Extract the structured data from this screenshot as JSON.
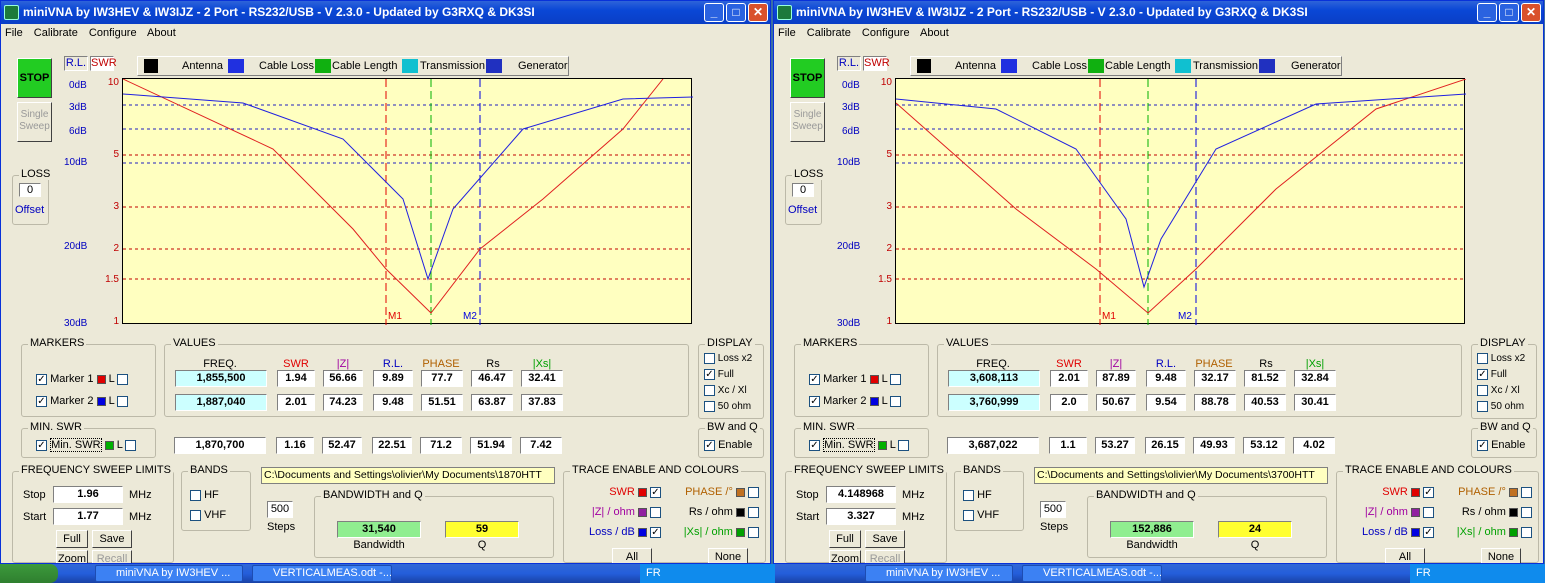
{
  "windows": [
    {
      "title": "miniVNA by IW3HEV & IW3IJZ - 2 Port - RS232/USB - V 2.3.0 - Updated by G3RXQ & DK3SI",
      "menu": [
        "File",
        "Calibrate",
        "Configure",
        "About"
      ],
      "stop_label": "STOP",
      "single_sweep_label": "Single Sweep",
      "rl_tab": "R.L.",
      "swr_tab": "SWR",
      "mode_buttons": [
        "Antenna",
        "Cable Loss",
        "Cable Length",
        "Transmission",
        "Generator"
      ],
      "rl_ticks": [
        "0dB",
        "3dB",
        "6dB",
        "10dB",
        "20dB",
        "30dB"
      ],
      "swr_ticks": [
        "10",
        "5",
        "3",
        "2",
        "1.5",
        "1"
      ],
      "marker_m1": "M1",
      "marker_m2": "M2",
      "loss": {
        "label": "LOSS",
        "value": "0",
        "offset": "Offset"
      },
      "markers_group": "MARKERS",
      "marker1_label": "Marker 1",
      "marker2_label": "Marker 2",
      "l_label": "L",
      "minswr_group": "MIN. SWR",
      "minswr_label": "Min. SWR",
      "values_group": "VALUES",
      "headers": [
        "FREQ.",
        "SWR",
        "|Z|",
        "R.L.",
        "PHASE",
        "Rs",
        "|Xs|"
      ],
      "m1_values": [
        "1,855,500",
        "1.94",
        "56.66",
        "9.89",
        "77.7",
        "46.47",
        "32.41"
      ],
      "m2_values": [
        "1,887,040",
        "2.01",
        "74.23",
        "9.48",
        "51.51",
        "63.87",
        "37.83"
      ],
      "min_values": [
        "1,870,700",
        "1.16",
        "52.47",
        "22.51",
        "71.2",
        "51.94",
        "7.42"
      ],
      "display_group": "DISPLAY",
      "display_opts": [
        "Loss x2",
        "Full",
        "Xc / Xl",
        "50 ohm"
      ],
      "bwq_group": "BW and Q",
      "enable_label": "Enable",
      "sweep_group": "FREQUENCY SWEEP LIMITS",
      "stop_lbl": "Stop",
      "start_lbl": "Start",
      "stop_freq": "1.96",
      "start_freq": "1.77",
      "mhz": "MHz",
      "full_btn": "Full",
      "save_btn": "Save",
      "zoom_btn": "Zoom",
      "recall_btn": "Recall",
      "bands_group": "BANDS",
      "hf_label": "HF",
      "vhf_label": "VHF",
      "path": "C:\\Documents and Settings\\olivier\\My Documents\\1870HTT",
      "steps_value": "500",
      "steps_label": "Steps",
      "bwq_box_group": "BANDWIDTH and Q",
      "bandwidth_value": "31,540",
      "q_value": "59",
      "bandwidth_label": "Bandwidth",
      "q_label": "Q",
      "trace_group": "TRACE ENABLE AND COLOURS",
      "trace_swr": "SWR",
      "trace_phase": "PHASE /°",
      "trace_z": "|Z| / ohm",
      "trace_rs": "Rs / ohm",
      "trace_loss": "Loss / dB",
      "trace_xs": "|Xs| / ohm",
      "all_btn": "All",
      "none_btn": "None"
    },
    {
      "title": "miniVNA by IW3HEV & IW3IJZ - 2 Port - RS232/USB - V 2.3.0 - Updated by G3RXQ & DK3SI",
      "menu": [
        "File",
        "Calibrate",
        "Configure",
        "About"
      ],
      "stop_label": "STOP",
      "single_sweep_label": "Single Sweep",
      "rl_tab": "R.L.",
      "swr_tab": "SWR",
      "mode_buttons": [
        "Antenna",
        "Cable Loss",
        "Cable Length",
        "Transmission",
        "Generator"
      ],
      "rl_ticks": [
        "0dB",
        "3dB",
        "6dB",
        "10dB",
        "20dB",
        "30dB"
      ],
      "swr_ticks": [
        "10",
        "5",
        "3",
        "2",
        "1.5",
        "1"
      ],
      "marker_m1": "M1",
      "marker_m2": "M2",
      "loss": {
        "label": "LOSS",
        "value": "0",
        "offset": "Offset"
      },
      "markers_group": "MARKERS",
      "marker1_label": "Marker 1",
      "marker2_label": "Marker 2",
      "l_label": "L",
      "minswr_group": "MIN. SWR",
      "minswr_label": "Min. SWR",
      "values_group": "VALUES",
      "headers": [
        "FREQ.",
        "SWR",
        "|Z|",
        "R.L.",
        "PHASE",
        "Rs",
        "|Xs|"
      ],
      "m1_values": [
        "3,608,113",
        "2.01",
        "87.89",
        "9.48",
        "32.17",
        "81.52",
        "32.84"
      ],
      "m2_values": [
        "3,760,999",
        "2.0",
        "50.67",
        "9.54",
        "88.78",
        "40.53",
        "30.41"
      ],
      "min_values": [
        "3,687,022",
        "1.1",
        "53.27",
        "26.15",
        "49.93",
        "53.12",
        "4.02"
      ],
      "display_group": "DISPLAY",
      "display_opts": [
        "Loss x2",
        "Full",
        "Xc / Xl",
        "50 ohm"
      ],
      "bwq_group": "BW and Q",
      "enable_label": "Enable",
      "sweep_group": "FREQUENCY SWEEP LIMITS",
      "stop_lbl": "Stop",
      "start_lbl": "Start",
      "stop_freq": "4.148968",
      "start_freq": "3.327",
      "mhz": "MHz",
      "full_btn": "Full",
      "save_btn": "Save",
      "zoom_btn": "Zoom",
      "recall_btn": "Recall",
      "bands_group": "BANDS",
      "hf_label": "HF",
      "vhf_label": "VHF",
      "path": "C:\\Documents and Settings\\olivier\\My Documents\\3700HTT",
      "steps_value": "500",
      "steps_label": "Steps",
      "bwq_box_group": "BANDWIDTH and Q",
      "bandwidth_value": "152,886",
      "q_value": "24",
      "bandwidth_label": "Bandwidth",
      "q_label": "Q",
      "trace_group": "TRACE ENABLE AND COLOURS",
      "trace_swr": "SWR",
      "trace_phase": "PHASE /°",
      "trace_z": "|Z| / ohm",
      "trace_rs": "Rs / ohm",
      "trace_loss": "Loss / dB",
      "trace_xs": "|Xs| / ohm",
      "all_btn": "All",
      "none_btn": "None"
    }
  ],
  "taskbar": {
    "left": {
      "task1": "miniVNA by IW3HEV ...",
      "task2": "VERTICALMEAS.odt -...",
      "lang": "FR"
    },
    "right": {
      "task1": "miniVNA by IW3HEV ...",
      "task2": "VERTICALMEAS.odt -...",
      "lang": "FR"
    }
  },
  "colors": {
    "swr_trace": "#e02020",
    "rl_trace": "#2020e0",
    "marker1": "#e00000",
    "marker2": "#0000e0",
    "minswr": "#00b000",
    "plot_bg": "#ffffc0"
  }
}
